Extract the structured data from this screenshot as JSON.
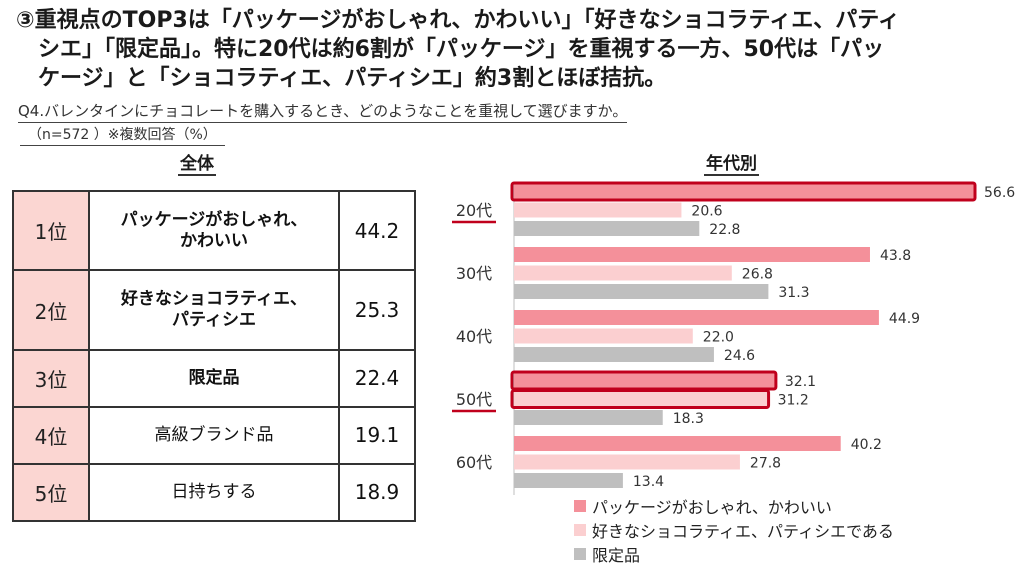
{
  "headline": {
    "line1": "③重視点のTOP3は「パッケージがおしゃれ、かわいい」「好きなショコラティエ、パティ",
    "line2": "シエ」「限定品」。特に20代は約6割が「パッケージ」を重視する一方、50代は「パッ",
    "line3": "ケージ」と「ショコラティエ、パティシエ」約3割とほぼ拮抗。"
  },
  "question": "Q4.バレンタインにチョコレートを購入するとき、どのようなことを重視して選びますか。",
  "sample_note": "（n=572 ）※複数回答（%）",
  "overall_title": "全体",
  "by_age_title": "年代別",
  "ranking": [
    {
      "rank": "1位",
      "item_line1": "パッケージがおしゃれ、",
      "item_line2": "かわいい",
      "value": "44.2",
      "bold": true
    },
    {
      "rank": "2位",
      "item_line1": "好きなショコラティエ、",
      "item_line2": "パティシエ",
      "value": "25.3",
      "bold": true
    },
    {
      "rank": "3位",
      "item_line1": "限定品",
      "item_line2": "",
      "value": "22.4",
      "bold": true
    },
    {
      "rank": "4位",
      "item_line1": "高級ブランド品",
      "item_line2": "",
      "value": "19.1",
      "bold": false
    },
    {
      "rank": "5位",
      "item_line1": "日持ちする",
      "item_line2": "",
      "value": "18.9",
      "bold": false
    }
  ],
  "chart_data": {
    "type": "bar",
    "orientation": "horizontal",
    "title": "年代別",
    "categories": [
      "20代",
      "30代",
      "40代",
      "50代",
      "60代"
    ],
    "series": [
      {
        "name": "パッケージがおしゃれ、かわいい",
        "color": "#f4909a",
        "values": [
          56.6,
          43.8,
          44.9,
          32.1,
          40.2
        ]
      },
      {
        "name": "好きなショコラティエ、パティシエである",
        "color": "#fbcfd0",
        "values": [
          20.6,
          26.8,
          22.0,
          31.2,
          27.8
        ]
      },
      {
        "name": "限定品",
        "color": "#bfbfbf",
        "values": [
          22.8,
          31.3,
          24.6,
          18.3,
          13.4
        ]
      }
    ],
    "xlim": [
      0,
      56.6
    ],
    "highlighted_categories": [
      "20代",
      "50代"
    ],
    "highlight_color": "#c0001c",
    "legend_position": "bottom-center",
    "grid": false
  }
}
